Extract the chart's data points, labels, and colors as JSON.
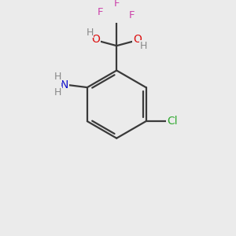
{
  "bg_color": "#EBEBEB",
  "bond_color": "#3a3a3a",
  "atom_colors": {
    "F": "#CC44AA",
    "O": "#DD1111",
    "N": "#1111CC",
    "Cl": "#33AA33",
    "C": "#3a3a3a",
    "H": "#888888"
  }
}
